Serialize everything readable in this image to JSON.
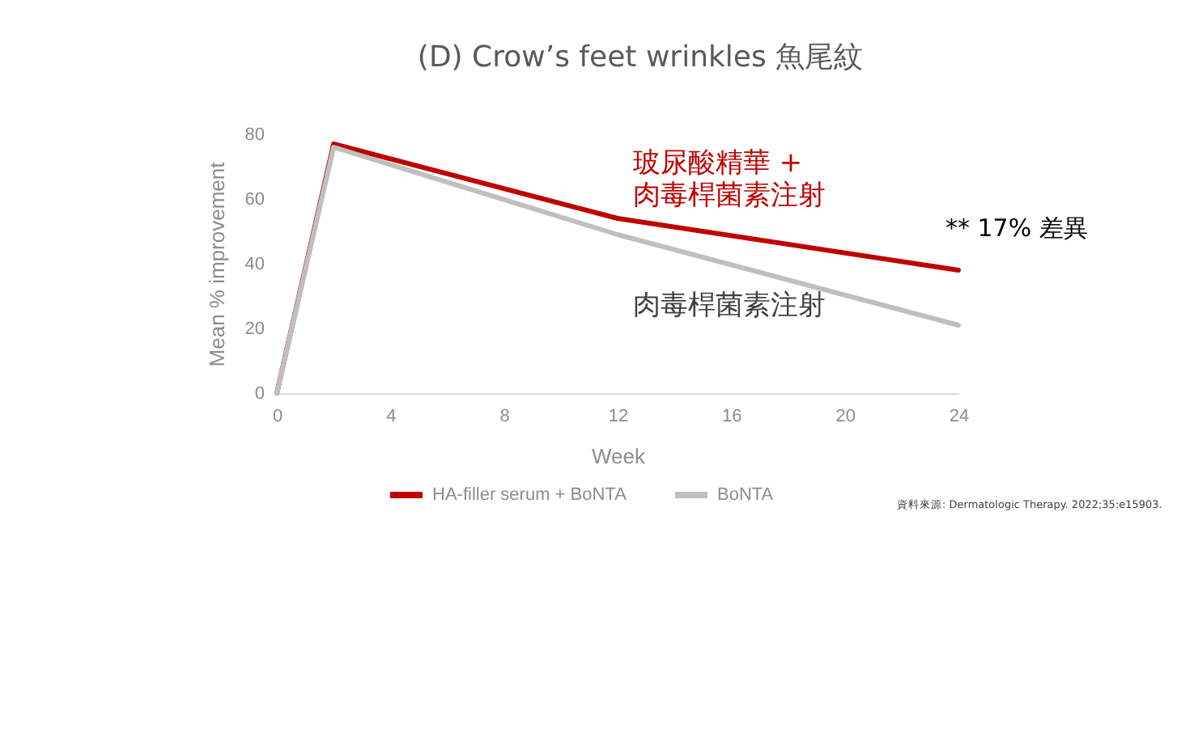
{
  "chart_data": {
    "type": "line",
    "title": "(D) Crow’s feet wrinkles 魚尾紋",
    "xlabel": "Week",
    "ylabel": "Mean % improvement",
    "x": [
      0,
      2,
      12,
      24
    ],
    "series": [
      {
        "name": "HA-filler serum + BoNTA",
        "color": "#c00000",
        "values": [
          0,
          77,
          54,
          38
        ]
      },
      {
        "name": "BoNTA",
        "color": "#bfbfbf",
        "values": [
          0,
          76,
          49,
          21
        ]
      }
    ],
    "xlim": [
      0,
      24
    ],
    "xticks": [
      0,
      4,
      8,
      12,
      16,
      20,
      24
    ],
    "ylim": [
      0,
      80
    ],
    "yticks": [
      0,
      20,
      40,
      60,
      80
    ],
    "legend": "bottom",
    "line_style": "solid",
    "annotations": [
      "玻尿酸精華 +\n肉毒桿菌素注射",
      "肉毒桿菌素注射",
      "** 17% 差異",
      "資料來源: Dermatologic Therapy. 2022;35:e15903."
    ]
  }
}
